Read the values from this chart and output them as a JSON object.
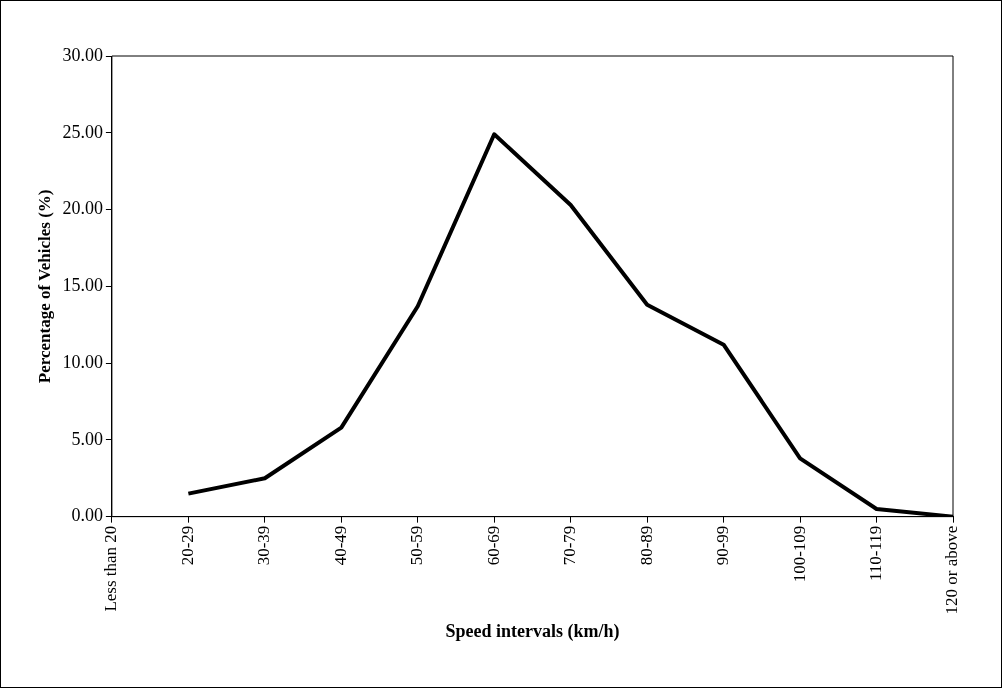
{
  "chart_data": {
    "type": "line",
    "xlabel": "Speed intervals (km/h)",
    "ylabel": "Percentage of Vehicles (%)",
    "categories": [
      "Less than 20",
      "20-29",
      "30-39",
      "40-49",
      "50-59",
      "60-69",
      "70-79",
      "80-89",
      "90-99",
      "100-109",
      "110-119",
      "120 or above"
    ],
    "series": [
      {
        "color": "#000000",
        "values": [
          null,
          1.5,
          2.5,
          5.8,
          13.7,
          24.9,
          20.3,
          13.8,
          11.2,
          3.8,
          0.5,
          0.0
        ]
      }
    ],
    "ylim": [
      0,
      30
    ],
    "yticks": [
      {
        "value": 0,
        "label": "0.00"
      },
      {
        "value": 5,
        "label": "5.00"
      },
      {
        "value": 10,
        "label": "10.00"
      },
      {
        "value": 15,
        "label": "15.00"
      },
      {
        "value": 20,
        "label": "20.00"
      },
      {
        "value": 25,
        "label": "25.00"
      },
      {
        "value": 30,
        "label": "30.00"
      }
    ],
    "legend": false,
    "marker": "none",
    "line_style": "solid"
  }
}
